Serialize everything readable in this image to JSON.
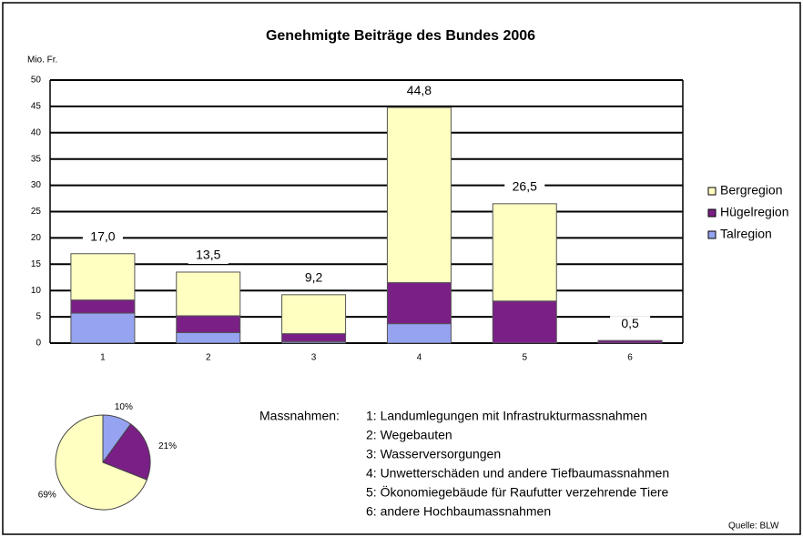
{
  "chart_data": [
    {
      "type": "bar",
      "title": "Genehmigte Beiträge des Bundes 2006",
      "y_label": "Mio. Fr.",
      "categories": [
        "1",
        "2",
        "3",
        "4",
        "5",
        "6"
      ],
      "series": [
        {
          "name": "Talregion",
          "color": "#95a3f0",
          "values": [
            5.7,
            2.0,
            0.3,
            3.7,
            0,
            0
          ]
        },
        {
          "name": "Hügelregion",
          "color": "#7a1f86",
          "values": [
            2.5,
            3.2,
            1.5,
            7.8,
            8.0,
            0.5
          ]
        },
        {
          "name": "Bergregion",
          "color": "#ffffc2",
          "values": [
            8.8,
            8.3,
            7.4,
            33.3,
            18.5,
            0
          ]
        }
      ],
      "totals": [
        17.0,
        13.5,
        9.2,
        44.8,
        26.5,
        0.5
      ],
      "total_labels": [
        "17,0",
        "13,5",
        "9,2",
        "44,8",
        "26,5",
        "0,5"
      ],
      "ylim": [
        0,
        50
      ],
      "yticks": [
        0,
        5,
        10,
        15,
        20,
        25,
        30,
        35,
        40,
        45,
        50
      ],
      "grid": true,
      "stacked": true,
      "legend": "right"
    },
    {
      "type": "pie",
      "values": [
        10,
        21,
        69
      ],
      "value_labels": [
        "10%",
        "21%",
        "69%"
      ],
      "colors": [
        "#95a3f0",
        "#7a1f86",
        "#ffffc2"
      ]
    }
  ],
  "notes": {
    "heading": "Massnahmen:",
    "items": [
      "1: Landumlegungen mit Infrastrukturmassnahmen",
      "2: Wegebauten",
      "3: Wasserversorgungen",
      "4: Unwetterschäden und andere Tiefbaumassnahmen",
      "5: Ökonomiegebäude für Raufutter verzehrende Tiere",
      "6: andere Hochbaumassnahmen"
    ],
    "source": "Quelle: BLW"
  }
}
